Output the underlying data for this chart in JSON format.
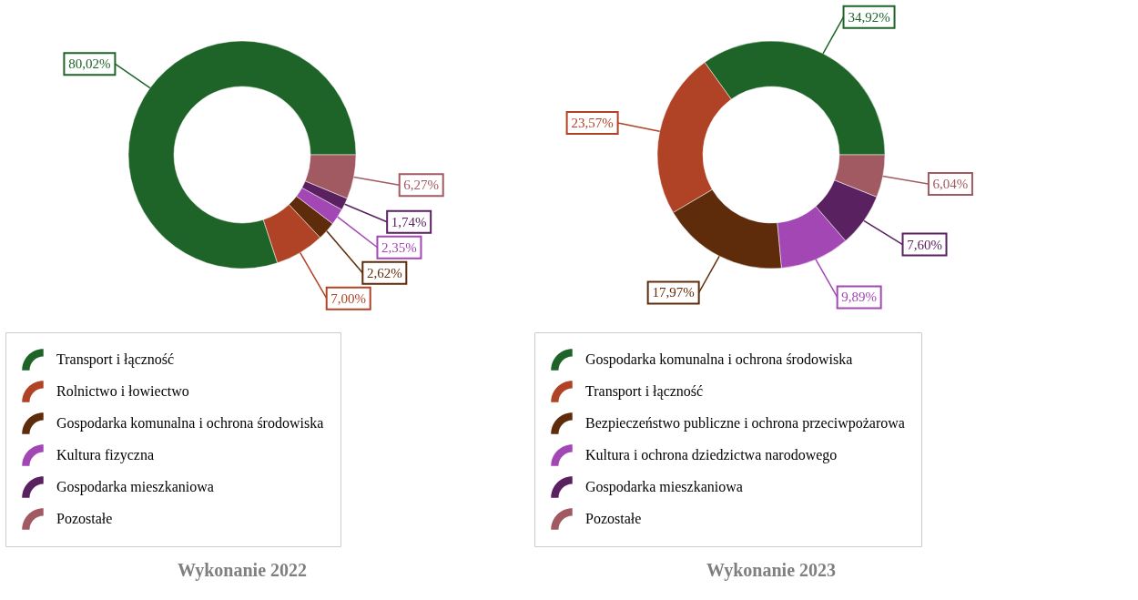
{
  "chart_data": [
    {
      "type": "donut",
      "title": "Wykonanie 2022",
      "categories": [
        "Transport i łączność",
        "Rolnictwo i łowiectwo",
        "Gospodarka komunalna i ochrona środowiska",
        "Kultura fizyczna",
        "Gospodarka mieszkaniowa",
        "Pozostałe"
      ],
      "values": [
        80.02,
        7.0,
        2.62,
        2.35,
        1.74,
        6.27
      ],
      "colors": [
        "#1e6428",
        "#b04325",
        "#5e2c0a",
        "#a347b5",
        "#5a2160",
        "#a25a62"
      ],
      "value_labels": [
        "80,02%",
        "7,00%",
        "2,62%",
        "2,35%",
        "1,74%",
        "6,27%"
      ],
      "legend": "bottom"
    },
    {
      "type": "donut",
      "title": "Wykonanie 2023",
      "categories": [
        "Gospodarka komunalna i ochrona środowiska",
        "Transport i łączność",
        "Bezpieczeństwo publiczne i ochrona przeciwpożarowa",
        "Kultura i ochrona dziedzictwa narodowego",
        "Gospodarka mieszkaniowa",
        "Pozostałe"
      ],
      "values": [
        34.92,
        23.57,
        17.97,
        9.89,
        7.6,
        6.04
      ],
      "colors": [
        "#1e6428",
        "#b04325",
        "#5e2c0a",
        "#a347b5",
        "#5a2160",
        "#a25a62"
      ],
      "value_labels": [
        "34,92%",
        "23,57%",
        "17,97%",
        "9,89%",
        "7,60%",
        "6,04%"
      ],
      "legend": "bottom"
    }
  ]
}
